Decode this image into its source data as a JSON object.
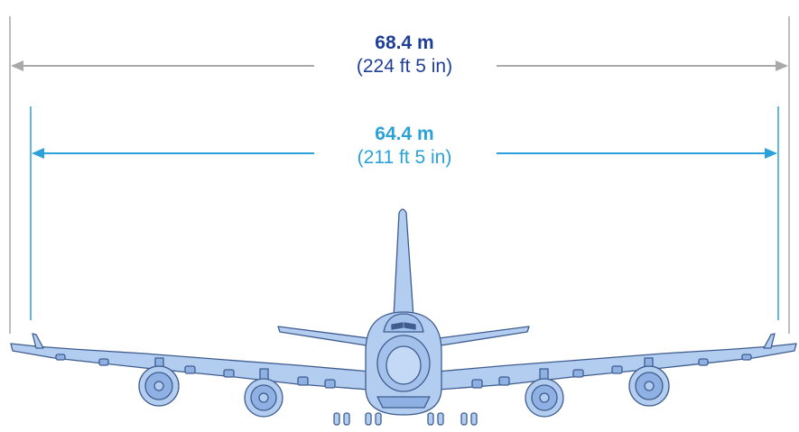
{
  "colors": {
    "outer_dimension": "#1f3e96",
    "outer_line": "#a9a9a9",
    "inner_dimension": "#2aa1d8",
    "aircraft_fill": "#b3cdf0",
    "aircraft_fill_dark": "#8fb0e2",
    "aircraft_stroke": "#3e5c8e"
  },
  "outer_span": {
    "metric": "68.4 m",
    "imperial": "(224 ft 5 in)"
  },
  "inner_span": {
    "metric": "64.4 m",
    "imperial": "(211 ft 5 in)"
  }
}
